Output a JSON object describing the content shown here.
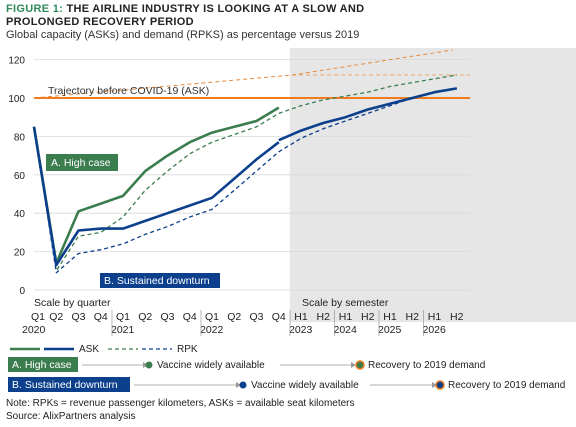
{
  "header": {
    "figure_label": "FIGURE 1:",
    "title_line1": " THE AIRLINE INDUSTRY IS LOOKING AT A SLOW AND",
    "title_line2": "PROLONGED RECOVERY PERIOD",
    "subtitle": "Global capacity (ASKs) and demand (RPKS) as percentage versus 2019"
  },
  "colors": {
    "high_case": "#3c7d4f",
    "downturn": "#0c3f8c",
    "baseline": "#f07c1f",
    "trajectory": "#e88a3a",
    "shade": "#e6e6e6",
    "grid": "#d8d8d8"
  },
  "chart_data": {
    "type": "line",
    "ylim": [
      0,
      125
    ],
    "yticks": [
      0,
      20,
      40,
      60,
      80,
      100,
      120
    ],
    "x_positions": [
      "Q1 2020",
      "Q2 2020",
      "Q3 2020",
      "Q4 2020",
      "Q1 2021",
      "Q2 2021",
      "Q3 2021",
      "Q4 2021",
      "Q1 2022",
      "Q2 2022",
      "Q3 2022",
      "Q4 2022",
      "H1 2023",
      "H2 2023",
      "H1 2024",
      "H2 2024",
      "H1 2025",
      "H2 2025",
      "H1 2026",
      "H2 2026"
    ],
    "x_tick_top": [
      "Q1",
      "Q2",
      "Q3",
      "Q4",
      "Q1",
      "Q2",
      "Q3",
      "Q4",
      "Q1",
      "Q2",
      "Q3",
      "Q4",
      "H1",
      "H2",
      "H1",
      "H2",
      "H1",
      "H2",
      "H1",
      "H2"
    ],
    "x_tick_year": [
      {
        "index": 0,
        "label": "2020"
      },
      {
        "index": 4,
        "label": "2021"
      },
      {
        "index": 8,
        "label": "2022"
      },
      {
        "index": 12,
        "label": "2023"
      },
      {
        "index": 14,
        "label": "2024"
      },
      {
        "index": 16,
        "label": "2025"
      },
      {
        "index": 18,
        "label": "2026"
      }
    ],
    "scale_labels": {
      "quarter": "Scale by quarter",
      "semester": "Scale by semester"
    },
    "shaded_from_index": 11.5,
    "baseline": {
      "value": 100
    },
    "trajectory": {
      "label": "Trajectory before COVID-19 (ASK)",
      "points": [
        [
          0,
          100
        ],
        [
          11.6,
          112
        ],
        [
          18.8,
          125
        ]
      ]
    },
    "trajectory_upper": {
      "points": [
        [
          11.6,
          112
        ],
        [
          19.6,
          112
        ]
      ]
    },
    "series": [
      {
        "key": "high_ask",
        "style": "solid",
        "color_key": "high_case",
        "points": [
          [
            0,
            85
          ],
          [
            1,
            14
          ],
          [
            2,
            41
          ],
          [
            3,
            45
          ],
          [
            4,
            49
          ],
          [
            5,
            62
          ],
          [
            6,
            70
          ],
          [
            7,
            77
          ],
          [
            8,
            82
          ],
          [
            9,
            85
          ],
          [
            10,
            88
          ],
          [
            11,
            95
          ]
        ]
      },
      {
        "key": "high_rpk",
        "style": "dashed",
        "color_key": "high_case",
        "points": [
          [
            0,
            85
          ],
          [
            1,
            10
          ],
          [
            2,
            28
          ],
          [
            3,
            30
          ],
          [
            4,
            38
          ],
          [
            5,
            52
          ],
          [
            6,
            62
          ],
          [
            7,
            71
          ],
          [
            8,
            77
          ],
          [
            9,
            81
          ],
          [
            10,
            85
          ],
          [
            11,
            92
          ],
          [
            12,
            96
          ],
          [
            13,
            99
          ],
          [
            14,
            101
          ],
          [
            15,
            103
          ],
          [
            16,
            106
          ],
          [
            17,
            108
          ],
          [
            18,
            110
          ],
          [
            19,
            112
          ]
        ]
      },
      {
        "key": "down_ask",
        "style": "solid",
        "color_key": "downturn",
        "points": [
          [
            0,
            85
          ],
          [
            1,
            13
          ],
          [
            2,
            31
          ],
          [
            3,
            32
          ],
          [
            4,
            32
          ],
          [
            5,
            36
          ],
          [
            6,
            40
          ],
          [
            7,
            44
          ],
          [
            8,
            48
          ],
          [
            9,
            58
          ],
          [
            10,
            68
          ],
          [
            11,
            77
          ]
        ]
      },
      {
        "key": "down_rpk",
        "style": "dashed",
        "color_key": "downturn",
        "points": [
          [
            0,
            85
          ],
          [
            1,
            9
          ],
          [
            2,
            19
          ],
          [
            3,
            21
          ],
          [
            4,
            24
          ],
          [
            5,
            29
          ],
          [
            6,
            33
          ],
          [
            7,
            38
          ],
          [
            8,
            42
          ],
          [
            9,
            52
          ],
          [
            10,
            62
          ],
          [
            11,
            72
          ],
          [
            12,
            79
          ],
          [
            13,
            84
          ],
          [
            14,
            88
          ],
          [
            15,
            92
          ],
          [
            16,
            96
          ],
          [
            17,
            100
          ],
          [
            18,
            103
          ],
          [
            19,
            105
          ]
        ]
      },
      {
        "key": "down_ask_future",
        "style": "solid",
        "color_key": "downturn",
        "points": [
          [
            11,
            78
          ],
          [
            12,
            83
          ],
          [
            13,
            87
          ],
          [
            14,
            90
          ],
          [
            15,
            94
          ],
          [
            16,
            97
          ],
          [
            17,
            100
          ],
          [
            18,
            103
          ],
          [
            19,
            105
          ]
        ]
      }
    ],
    "annotations": {
      "high_case_label": "A. High case",
      "downturn_label": "B. Sustained downturn"
    }
  },
  "legend": {
    "ask_label": "ASK",
    "rpk_label": "RPK",
    "row_a": {
      "case": "A. High case",
      "milestone1": "Vaccine widely available",
      "milestone2": "Recovery to 2019 demand"
    },
    "row_b": {
      "case": "B. Sustained downturn",
      "milestone1": "Vaccine widely available",
      "milestone2": "Recovery to 2019 demand"
    }
  },
  "footer": {
    "note": "Note: RPKs = revenue passenger kilometers, ASKs = available seat kilometers",
    "source": "Source: AlixPartners analysis"
  }
}
